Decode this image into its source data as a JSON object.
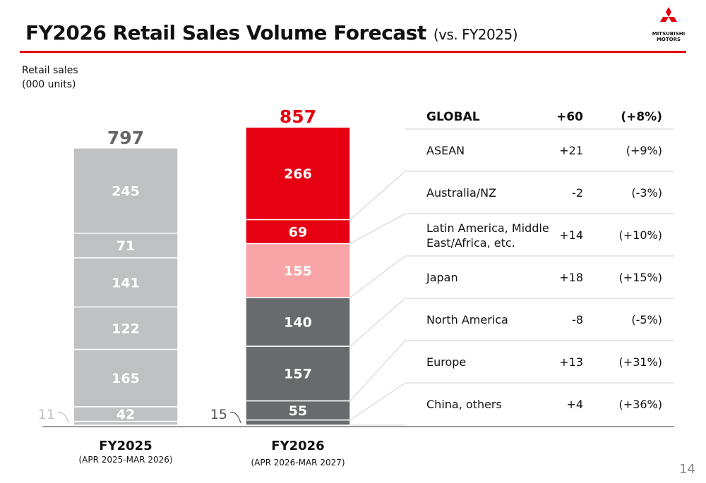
{
  "title": "FY2026 Retail Sales Volume Forecast",
  "subtitle": "(vs. FY2025)",
  "logo": {
    "line1": "MITSUBISHI",
    "line2": "MOTORS"
  },
  "page_number": "14",
  "colors": {
    "accent": "#e60012",
    "grey": "#bfc1c3",
    "pink": "#f9a5a8",
    "dark": "#686b6e"
  },
  "chart_data": {
    "type": "bar",
    "stacked": true,
    "ylabel_lines": [
      "Retail sales",
      "(000 units)"
    ],
    "categories": [
      {
        "label": "FY2025",
        "sublabel": "(APR 2025-MAR 2026)",
        "total": "797"
      },
      {
        "label": "FY2026",
        "sublabel": "(APR 2026-MAR 2027)",
        "total": "857"
      }
    ],
    "series": [
      {
        "name": "China, others",
        "values": [
          11,
          15
        ],
        "labels": [
          "",
          ""
        ],
        "outside_labels": [
          "11",
          "15"
        ],
        "colors": [
          "#bfc1c3",
          "#686b6e"
        ]
      },
      {
        "name": "Europe",
        "values": [
          42,
          55
        ],
        "labels": [
          "42",
          "55"
        ],
        "colors": [
          "#bfc1c3",
          "#686b6e"
        ]
      },
      {
        "name": "North America",
        "values": [
          165,
          157
        ],
        "labels": [
          "165",
          "157"
        ],
        "colors": [
          "#bfc1c3",
          "#686b6e"
        ]
      },
      {
        "name": "Japan",
        "values": [
          122,
          140
        ],
        "labels": [
          "122",
          "140"
        ],
        "colors": [
          "#bfc1c3",
          "#686b6e"
        ]
      },
      {
        "name": "Latin America, Middle East/Africa, etc.",
        "values": [
          141,
          155
        ],
        "labels": [
          "141",
          "155"
        ],
        "colors": [
          "#bfc1c3",
          "#f9a5a8"
        ]
      },
      {
        "name": "Australia/NZ",
        "values": [
          71,
          69
        ],
        "labels": [
          "71",
          "69"
        ],
        "colors": [
          "#bfc1c3",
          "#e60012"
        ]
      },
      {
        "name": "ASEAN",
        "values": [
          245,
          266
        ],
        "labels": [
          "245",
          "266"
        ],
        "colors": [
          "#bfc1c3",
          "#e60012"
        ]
      }
    ]
  },
  "change_table": {
    "rows": [
      {
        "region": "GLOBAL",
        "region_lines": [
          "GLOBAL"
        ],
        "change": "+60",
        "pct": "(+8%)",
        "bold": true
      },
      {
        "region": "ASEAN",
        "region_lines": [
          "ASEAN"
        ],
        "change": "+21",
        "pct": "(+9%)"
      },
      {
        "region": "Australia/NZ",
        "region_lines": [
          "Australia/NZ"
        ],
        "change": "-2",
        "pct": "(-3%)"
      },
      {
        "region": "Latin America, Middle East/Africa, etc.",
        "region_lines": [
          "Latin America, Middle",
          "East/Africa, etc."
        ],
        "change": "+14",
        "pct": "(+10%)"
      },
      {
        "region": "Japan",
        "region_lines": [
          "Japan"
        ],
        "change": "+18",
        "pct": "(+15%)"
      },
      {
        "region": "North America",
        "region_lines": [
          "North America"
        ],
        "change": "-8",
        "pct": "(-5%)"
      },
      {
        "region": "Europe",
        "region_lines": [
          "Europe"
        ],
        "change": "+13",
        "pct": "(+31%)"
      },
      {
        "region": "China, others",
        "region_lines": [
          "China, others"
        ],
        "change": "+4",
        "pct": "(+36%)"
      }
    ]
  }
}
